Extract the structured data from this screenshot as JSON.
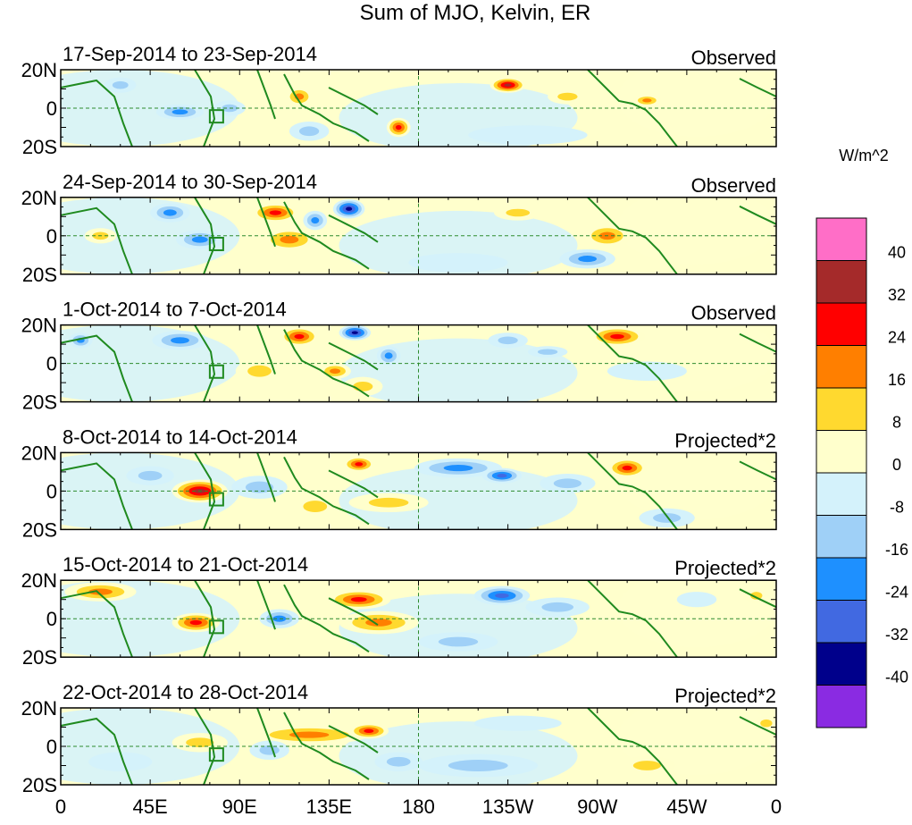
{
  "chart_data": {
    "type": "heatmap",
    "title": "Sum of MJO, Kelvin, ER",
    "units": "W/m^2",
    "x_ticks": [
      "0",
      "45E",
      "90E",
      "135E",
      "180",
      "135W",
      "90W",
      "45W",
      "0"
    ],
    "y_ticks": [
      "20N",
      "0",
      "20S"
    ],
    "x_range_deg_east": [
      0,
      360
    ],
    "y_range_deg": [
      -20,
      20
    ],
    "colorbar": {
      "levels": [
        "40",
        "32",
        "24",
        "16",
        "8",
        "0",
        "-8",
        "-16",
        "-24",
        "-32",
        "-40"
      ],
      "colors": [
        "#ff6ec7",
        "#a52a2a",
        "#ff0000",
        "#ff7f00",
        "#ffd92f",
        "#ffffcc",
        "#d4f2fb",
        "#9fd0f7",
        "#1e90ff",
        "#4169e1",
        "#00008b",
        "#8a2be2"
      ]
    },
    "panels": [
      {
        "period": "17-Sep-2014 to 23-Sep-2014",
        "label": "Observed",
        "blobs": [
          [
            125,
            -12,
            10,
            5,
            -10
          ],
          [
            60,
            -2,
            12,
            4,
            -20
          ],
          [
            85,
            0,
            8,
            4,
            -14
          ],
          [
            120,
            6,
            7,
            5,
            16
          ],
          [
            170,
            -10,
            6,
            5,
            24
          ],
          [
            225,
            12,
            9,
            4,
            36
          ],
          [
            255,
            6,
            10,
            4,
            12
          ],
          [
            295,
            4,
            7,
            3,
            18
          ],
          [
            235,
            -14,
            30,
            5,
            -6
          ],
          [
            30,
            12,
            8,
            4,
            -10
          ]
        ]
      },
      {
        "period": "24-Sep-2014 to 30-Sep-2014",
        "label": "Observed",
        "blobs": [
          [
            55,
            12,
            10,
            5,
            -20
          ],
          [
            108,
            12,
            12,
            5,
            26
          ],
          [
            145,
            14,
            8,
            5,
            -38
          ],
          [
            128,
            8,
            6,
            5,
            -20
          ],
          [
            70,
            -2,
            12,
            5,
            -22
          ],
          [
            115,
            -2,
            14,
            6,
            20
          ],
          [
            230,
            12,
            12,
            4,
            14
          ],
          [
            275,
            0,
            12,
            6,
            18
          ],
          [
            265,
            -12,
            14,
            5,
            -20
          ],
          [
            20,
            0,
            8,
            4,
            10
          ],
          [
            200,
            -14,
            25,
            5,
            -6
          ]
        ]
      },
      {
        "period": "1-Oct-2014 to 7-Oct-2014",
        "label": "Observed",
        "blobs": [
          [
            60,
            12,
            14,
            5,
            -18
          ],
          [
            120,
            14,
            10,
            5,
            26
          ],
          [
            148,
            16,
            8,
            4,
            -36
          ],
          [
            165,
            4,
            6,
            5,
            -18
          ],
          [
            100,
            -4,
            12,
            6,
            14
          ],
          [
            138,
            -4,
            8,
            4,
            22
          ],
          [
            152,
            -12,
            10,
            5,
            12
          ],
          [
            280,
            14,
            14,
            5,
            26
          ],
          [
            225,
            12,
            10,
            4,
            -14
          ],
          [
            245,
            6,
            10,
            3,
            -12
          ],
          [
            295,
            -4,
            20,
            5,
            -6
          ],
          [
            10,
            12,
            6,
            4,
            -16
          ]
        ]
      },
      {
        "period": "8-Oct-2014 to 14-Oct-2014",
        "label": "Projected*2",
        "blobs": [
          [
            70,
            0,
            14,
            6,
            36
          ],
          [
            150,
            14,
            8,
            4,
            28
          ],
          [
            200,
            12,
            22,
            5,
            -20
          ],
          [
            222,
            8,
            10,
            4,
            -26
          ],
          [
            285,
            12,
            10,
            5,
            30
          ],
          [
            100,
            2,
            14,
            6,
            -14
          ],
          [
            128,
            -8,
            12,
            6,
            12
          ],
          [
            165,
            -6,
            20,
            5,
            10
          ],
          [
            45,
            8,
            12,
            5,
            -12
          ],
          [
            255,
            4,
            14,
            5,
            -10
          ],
          [
            305,
            -14,
            14,
            5,
            -8
          ]
        ]
      },
      {
        "period": "15-Oct-2014 to 21-Oct-2014",
        "label": "Projected*2",
        "blobs": [
          [
            20,
            14,
            18,
            5,
            18
          ],
          [
            68,
            -2,
            12,
            5,
            28
          ],
          [
            150,
            10,
            16,
            5,
            26
          ],
          [
            160,
            -2,
            20,
            6,
            16
          ],
          [
            110,
            0,
            10,
            5,
            -18
          ],
          [
            222,
            12,
            14,
            5,
            -26
          ],
          [
            250,
            6,
            16,
            5,
            -10
          ],
          [
            200,
            -12,
            20,
            5,
            -10
          ],
          [
            320,
            10,
            10,
            4,
            -6
          ],
          [
            350,
            12,
            6,
            4,
            12
          ]
        ]
      },
      {
        "period": "22-Oct-2014 to 28-Oct-2014",
        "label": "Projected*2",
        "blobs": [
          [
            125,
            6,
            30,
            5,
            20
          ],
          [
            155,
            8,
            10,
            4,
            28
          ],
          [
            70,
            2,
            14,
            5,
            14
          ],
          [
            105,
            -2,
            10,
            5,
            -12
          ],
          [
            170,
            -8,
            12,
            5,
            -14
          ],
          [
            210,
            -10,
            30,
            6,
            -8
          ],
          [
            230,
            12,
            22,
            4,
            -6
          ],
          [
            295,
            -10,
            14,
            5,
            10
          ],
          [
            30,
            -8,
            16,
            5,
            -6
          ],
          [
            355,
            12,
            6,
            4,
            12
          ]
        ]
      }
    ]
  }
}
